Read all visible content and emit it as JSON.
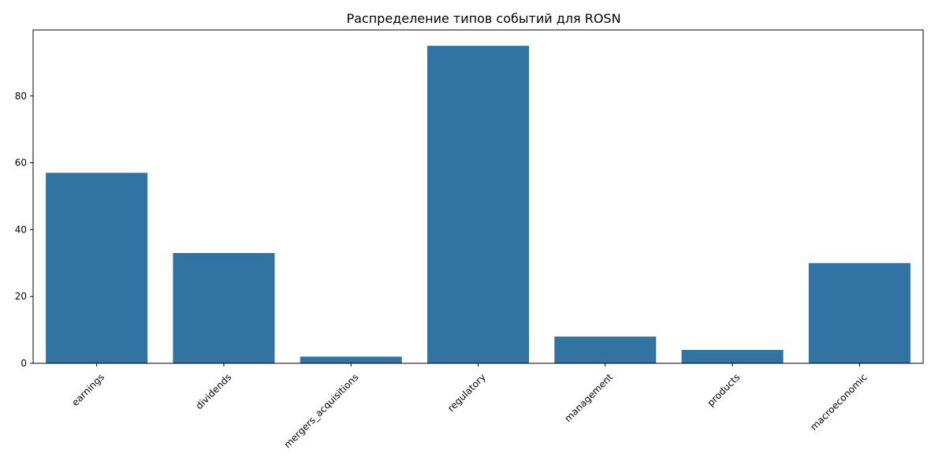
{
  "chart_data": {
    "type": "bar",
    "title": "Распределение типов событий для ROSN",
    "xlabel": "",
    "ylabel": "",
    "categories": [
      "earnings",
      "dividends",
      "mergers_acquisitions",
      "regulatory",
      "management",
      "products",
      "macroeconomic"
    ],
    "values": [
      57,
      33,
      2,
      95,
      8,
      4,
      30
    ],
    "ylim": [
      0,
      99.75
    ],
    "yticks": [
      0,
      20,
      40,
      60,
      80
    ],
    "bar_color": "#3274a1",
    "grid": false,
    "legend": "none"
  }
}
